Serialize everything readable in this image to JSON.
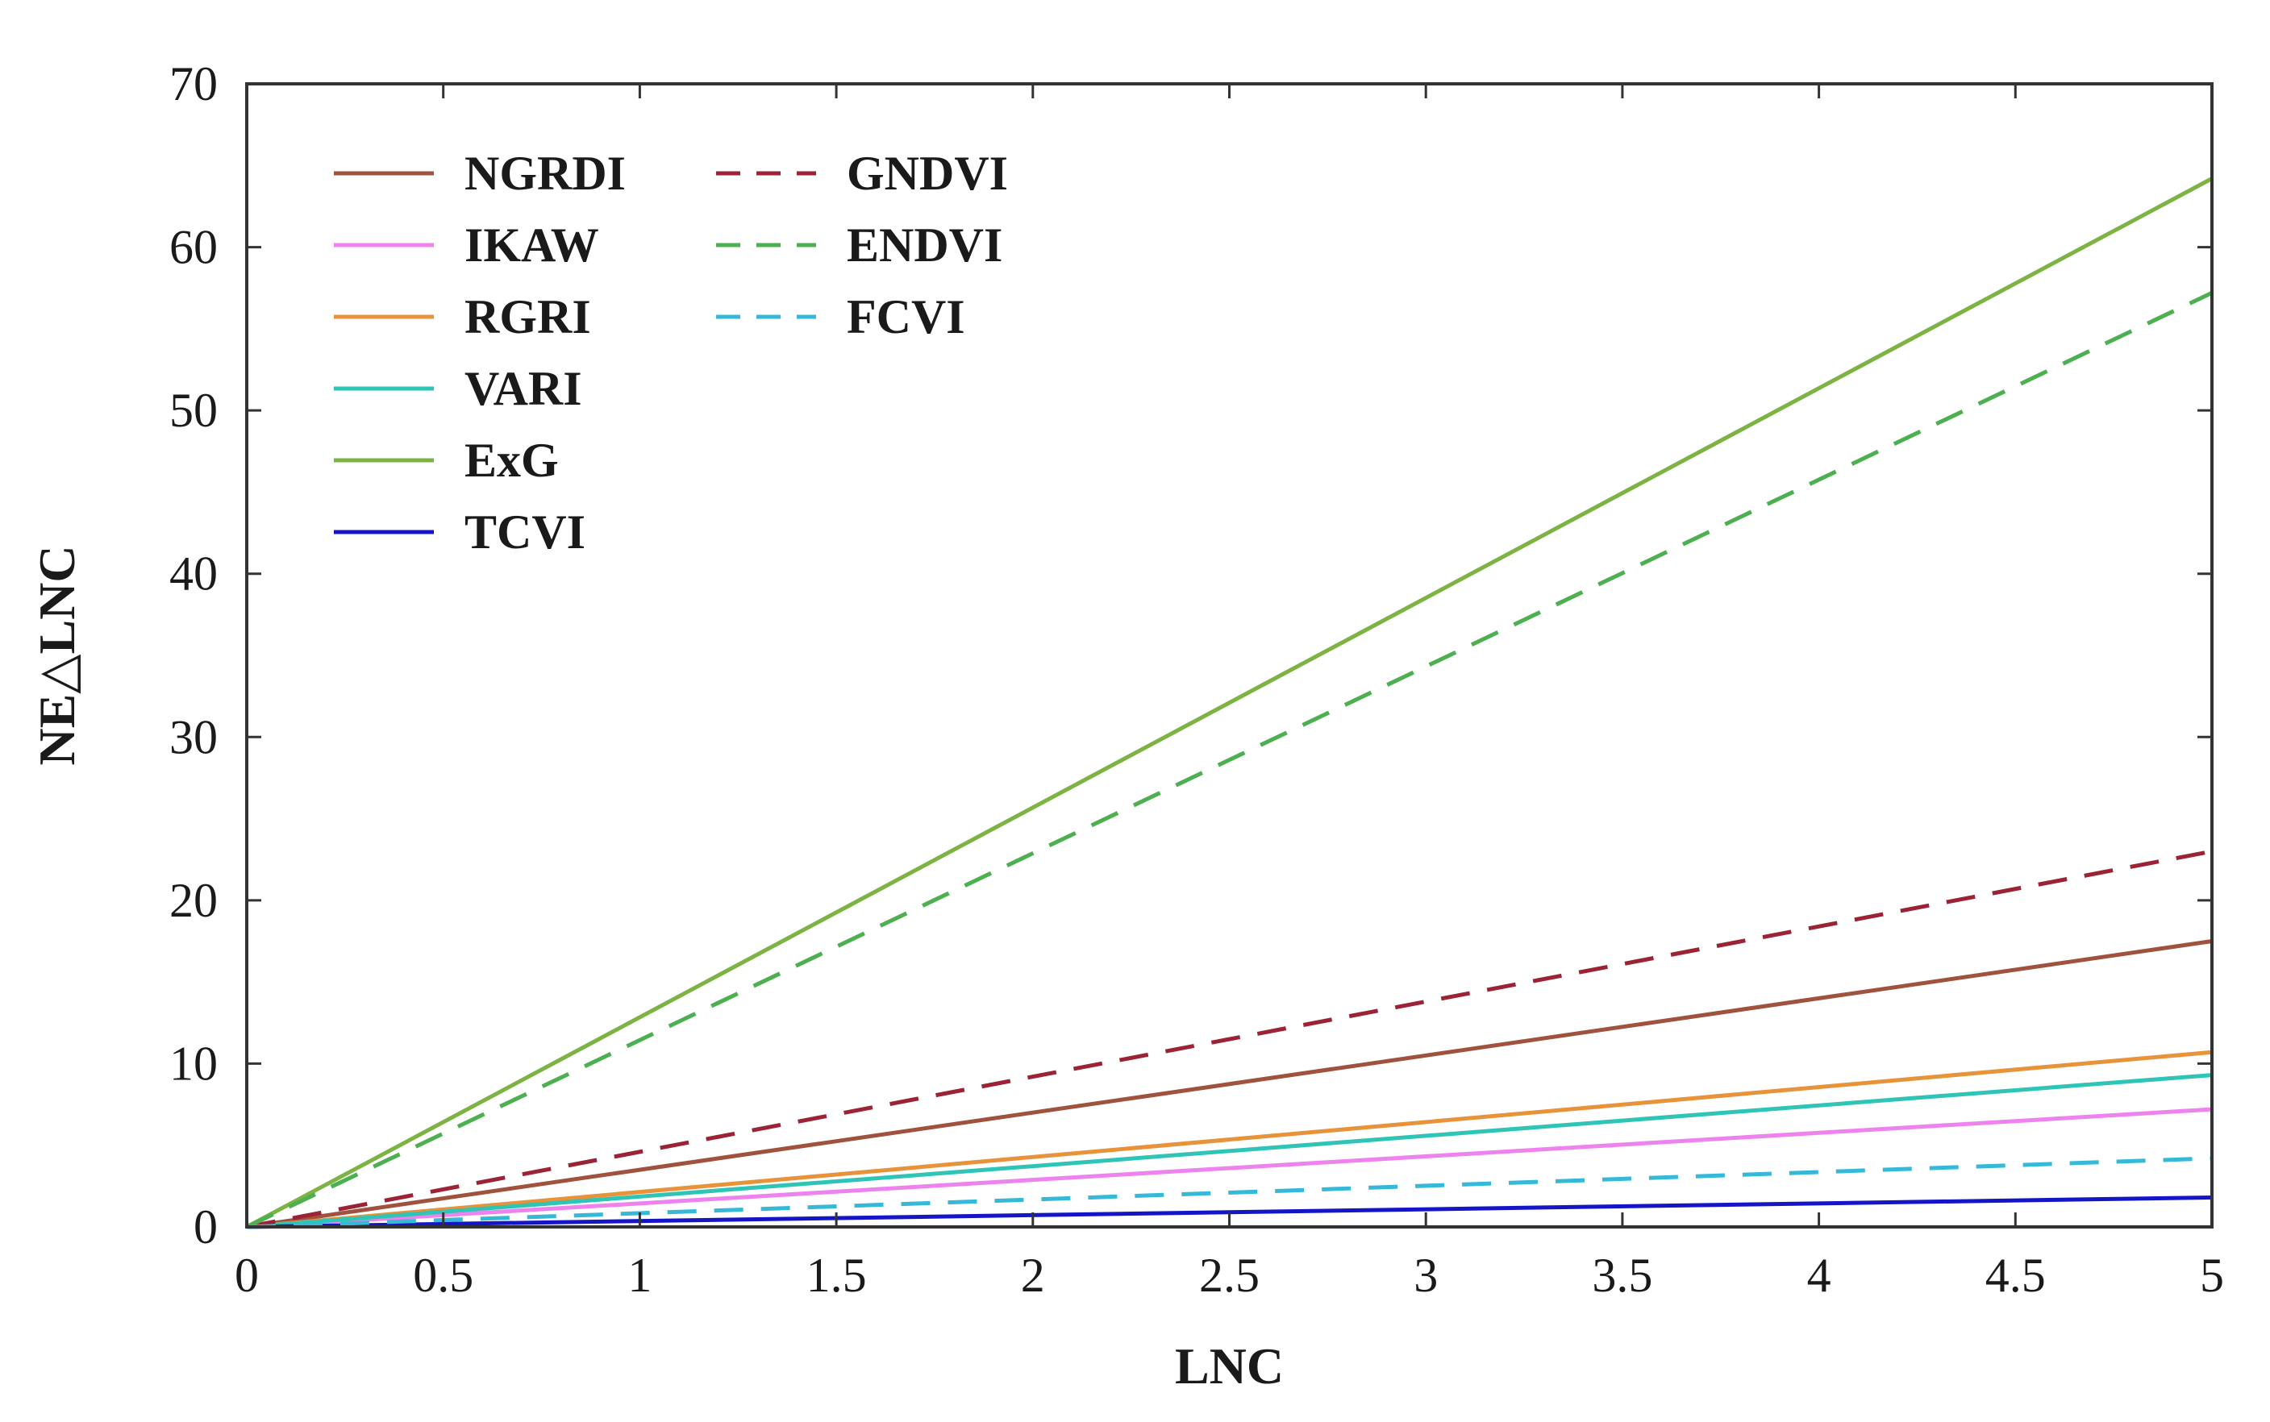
{
  "chart_data": {
    "type": "line",
    "title": "",
    "xlabel": "LNC",
    "ylabel": "NE△LNC",
    "xlim": [
      0,
      5
    ],
    "ylim": [
      0,
      70
    ],
    "xticks": [
      0,
      0.5,
      1,
      1.5,
      2,
      2.5,
      3,
      3.5,
      4,
      4.5,
      5
    ],
    "xtick_labels": [
      "0",
      "0.5",
      "1",
      "1.5",
      "2",
      "2.5",
      "3",
      "3.5",
      "4",
      "4.5",
      "5"
    ],
    "yticks": [
      0,
      10,
      20,
      30,
      40,
      50,
      60,
      70
    ],
    "ytick_labels": [
      "0",
      "10",
      "20",
      "30",
      "40",
      "50",
      "60",
      "70"
    ],
    "grid": false,
    "legend_position": "top-left",
    "legend_columns": 2,
    "series": [
      {
        "name": "NGRDI",
        "color": "#a0523f",
        "style": "solid",
        "x": [
          0,
          5
        ],
        "y": [
          0,
          17.5
        ]
      },
      {
        "name": "IKAW",
        "color": "#ee82ee",
        "style": "solid",
        "x": [
          0,
          5
        ],
        "y": [
          0,
          7.2
        ]
      },
      {
        "name": "RGRI",
        "color": "#e8923a",
        "style": "solid",
        "x": [
          0,
          5
        ],
        "y": [
          0,
          10.7
        ]
      },
      {
        "name": "VARI",
        "color": "#2ec4b6",
        "style": "solid",
        "x": [
          0,
          5
        ],
        "y": [
          0,
          9.3
        ]
      },
      {
        "name": "ExG",
        "color": "#7cb342",
        "style": "solid",
        "x": [
          0,
          5
        ],
        "y": [
          0,
          64.2
        ]
      },
      {
        "name": "TCVI",
        "color": "#1515c8",
        "style": "solid",
        "x": [
          0,
          5
        ],
        "y": [
          0,
          1.8
        ]
      },
      {
        "name": "GNDVI",
        "color": "#9b2335",
        "style": "dashed",
        "x": [
          0,
          5
        ],
        "y": [
          0,
          23
        ]
      },
      {
        "name": "ENDVI",
        "color": "#4caf50",
        "style": "dashed",
        "x": [
          0,
          5
        ],
        "y": [
          0,
          57.2
        ]
      },
      {
        "name": "FCVI",
        "color": "#36b8d8",
        "style": "dashed",
        "x": [
          0,
          5
        ],
        "y": [
          0,
          4.2
        ]
      }
    ]
  }
}
